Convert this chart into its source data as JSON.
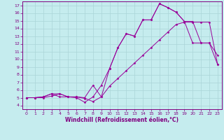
{
  "xlabel": "Windchill (Refroidissement éolien,°C)",
  "bg_color": "#c5ecee",
  "grid_color": "#aad4d8",
  "line_color": "#990099",
  "xlim": [
    -0.5,
    23.5
  ],
  "ylim": [
    3.5,
    17.5
  ],
  "xticks": [
    0,
    1,
    2,
    3,
    4,
    5,
    6,
    7,
    8,
    9,
    10,
    11,
    12,
    13,
    14,
    15,
    16,
    17,
    18,
    19,
    20,
    21,
    22,
    23
  ],
  "yticks": [
    4,
    5,
    6,
    7,
    8,
    9,
    10,
    11,
    12,
    13,
    14,
    15,
    16,
    17
  ],
  "line1_x": [
    0,
    1,
    2,
    3,
    4,
    5,
    6,
    7,
    8,
    9,
    10,
    11,
    12,
    13,
    14,
    15,
    16,
    17,
    18,
    19,
    20,
    21,
    22,
    23
  ],
  "line1_y": [
    5.0,
    5.0,
    5.0,
    5.2,
    5.5,
    5.1,
    5.1,
    4.9,
    4.5,
    5.1,
    6.5,
    7.5,
    8.5,
    9.5,
    10.5,
    11.5,
    12.5,
    13.5,
    14.5,
    14.8,
    14.8,
    14.8,
    14.8,
    9.3
  ],
  "line2_x": [
    0,
    1,
    2,
    3,
    4,
    5,
    6,
    7,
    8,
    9,
    10,
    11,
    12,
    13,
    14,
    15,
    16,
    17,
    18,
    19,
    20,
    21,
    22,
    23
  ],
  "line2_y": [
    5.0,
    5.0,
    5.1,
    5.5,
    5.1,
    5.1,
    5.0,
    4.4,
    5.1,
    6.6,
    8.8,
    11.5,
    13.3,
    13.0,
    15.1,
    15.1,
    17.2,
    16.7,
    16.1,
    14.9,
    14.9,
    12.1,
    12.1,
    10.5
  ],
  "line3_x": [
    0,
    1,
    2,
    3,
    4,
    5,
    6,
    7,
    8,
    9,
    10,
    11,
    12,
    13,
    14,
    15,
    16,
    17,
    18,
    19,
    20,
    21,
    22,
    23
  ],
  "line3_y": [
    5.0,
    5.0,
    5.1,
    5.5,
    5.5,
    5.1,
    5.1,
    5.0,
    6.6,
    5.1,
    8.8,
    11.5,
    13.3,
    13.0,
    15.1,
    15.1,
    17.2,
    16.7,
    16.1,
    14.9,
    12.1,
    12.1,
    12.1,
    9.3
  ]
}
